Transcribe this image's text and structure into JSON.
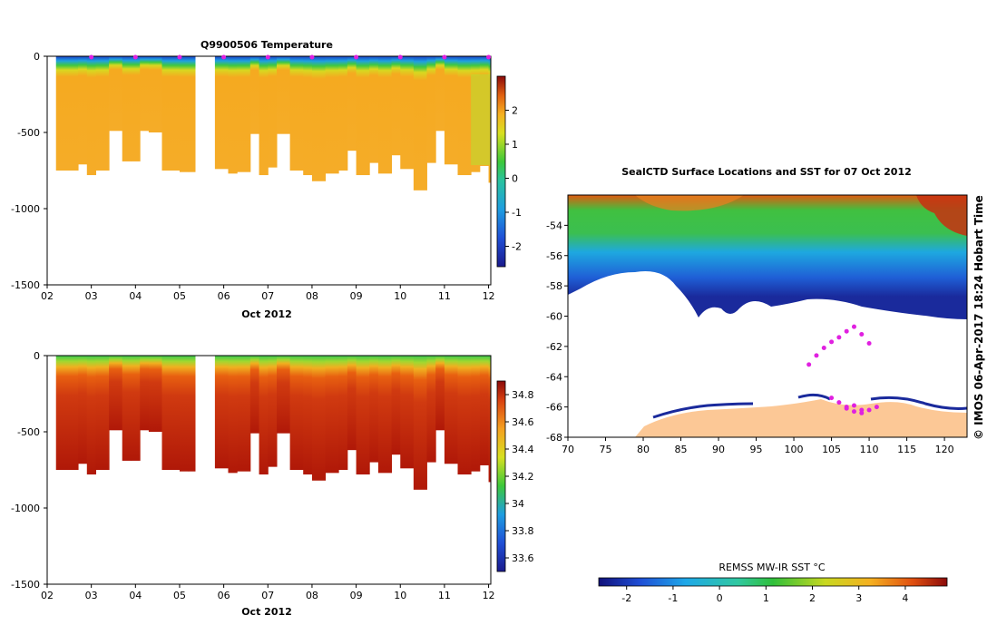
{
  "chart_data": [
    {
      "type": "heatmap",
      "name": "temperature-section",
      "title": "Q9900506  Temperature",
      "xlabel": "Oct 2012",
      "x_tick_labels": [
        "02",
        "03",
        "04",
        "05",
        "06",
        "07",
        "08",
        "09",
        "10",
        "11",
        "12"
      ],
      "x_range_days": [
        2,
        12.05
      ],
      "y_ticks": [
        0,
        -500,
        -1000,
        -1500
      ],
      "y_tick_labels": [
        "0",
        "-500",
        "-1000",
        "-1500"
      ],
      "ylim": [
        -1500,
        0
      ],
      "profile_days": [
        2.2,
        2.5,
        2.7,
        2.9,
        3.1,
        3.4,
        3.7,
        3.9,
        4.1,
        4.3,
        4.6,
        4.8,
        5.0,
        5.2,
        5.8,
        6.1,
        6.3,
        6.6,
        6.8,
        7.0,
        7.2,
        7.5,
        7.8,
        8.0,
        8.3,
        8.6,
        8.8,
        9.0,
        9.3,
        9.5,
        9.8,
        10.0,
        10.3,
        10.6,
        10.8,
        11.0,
        11.3,
        11.6,
        11.8,
        12.0
      ],
      "profile_max_depth": [
        750,
        750,
        710,
        780,
        750,
        490,
        690,
        690,
        490,
        500,
        750,
        750,
        760,
        760,
        740,
        770,
        760,
        510,
        780,
        730,
        510,
        750,
        780,
        820,
        770,
        750,
        620,
        780,
        700,
        770,
        650,
        740,
        880,
        700,
        490,
        710,
        780,
        760,
        720,
        830
      ],
      "gap_days": [
        5.35,
        5.8
      ],
      "colorbar": {
        "ticks": [
          2,
          1,
          0,
          -1,
          -2
        ],
        "tick_labels": [
          "2",
          "1",
          "0",
          "-1",
          "-2"
        ],
        "range": [
          -2.6,
          3.0
        ]
      },
      "markers_days": [
        3,
        4,
        5,
        6,
        7,
        8,
        9,
        10,
        11,
        12
      ]
    },
    {
      "type": "heatmap",
      "name": "salinity-section",
      "title": "",
      "xlabel": "Oct 2012",
      "x_tick_labels": [
        "02",
        "03",
        "04",
        "05",
        "06",
        "07",
        "08",
        "09",
        "10",
        "11",
        "12"
      ],
      "y_tick_labels": [
        "0",
        "-500",
        "-1000",
        "-1500"
      ],
      "ylim": [
        -1500,
        0
      ],
      "colorbar": {
        "ticks": [
          34.8,
          34.6,
          34.4,
          34.2,
          34,
          33.8,
          33.6
        ],
        "tick_labels": [
          "34.8",
          "34.6",
          "34.4",
          "34.2",
          "34",
          "33.8",
          "33.6"
        ],
        "range": [
          33.5,
          34.9
        ]
      }
    },
    {
      "type": "heatmap",
      "name": "sst-map",
      "title": "SealCTD Surface Locations and SST for 07 Oct 2012",
      "x_tick_labels": [
        "70",
        "75",
        "80",
        "85",
        "90",
        "95",
        "100",
        "105",
        "110",
        "115",
        "120"
      ],
      "y_tick_labels": [
        "-54",
        "-56",
        "-58",
        "-60",
        "-62",
        "-64",
        "-66",
        "-68"
      ],
      "xlim": [
        70,
        123
      ],
      "ylim": [
        -68,
        -52
      ],
      "colorbar": {
        "label": "REMSS MW-IR SST °C",
        "ticks": [
          -2,
          -1,
          0,
          1,
          2,
          3,
          4
        ],
        "tick_labels": [
          "-2",
          "-1",
          "0",
          "1",
          "2",
          "3",
          "4"
        ],
        "range": [
          -2.6,
          4.9
        ]
      },
      "track_points": [
        [
          107,
          -66.1
        ],
        [
          108,
          -65.9
        ],
        [
          109,
          -66.2
        ],
        [
          102,
          -63.2
        ],
        [
          103,
          -62.6
        ],
        [
          104,
          -62.1
        ],
        [
          105,
          -61.7
        ],
        [
          106,
          -61.4
        ],
        [
          107,
          -61.0
        ],
        [
          108,
          -60.7
        ],
        [
          109,
          -61.2
        ],
        [
          110,
          -61.8
        ],
        [
          105,
          -65.4
        ],
        [
          106,
          -65.7
        ],
        [
          107,
          -66.0
        ],
        [
          108,
          -66.3
        ],
        [
          109,
          -66.4
        ],
        [
          110,
          -66.2
        ],
        [
          111,
          -66.0
        ]
      ]
    }
  ],
  "credit": "© IMOS 06-Apr-2017 18:24 Hobart Time"
}
